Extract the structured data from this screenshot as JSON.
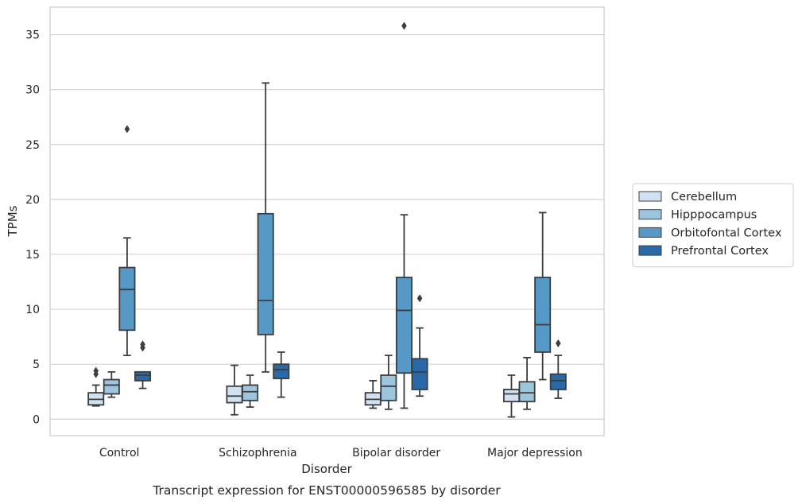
{
  "chart_data": {
    "type": "boxplot",
    "caption": "Transcript expression for ENST00000596585 by disorder",
    "xlabel": "Disorder",
    "ylabel": "TPMs",
    "ylim": [
      -1.5,
      37.5
    ],
    "yticks": [
      0,
      5,
      10,
      15,
      20,
      25,
      30,
      35
    ],
    "grid": "horizontal",
    "legend_position": "right",
    "categories": [
      "Control",
      "Schizophrenia",
      "Bipolar disorder",
      "Major depression"
    ],
    "series": [
      {
        "name": "Cerebellum",
        "color": "#d0e1f1",
        "boxes": [
          {
            "whisker_low": 1.2,
            "q1": 1.3,
            "median": 1.8,
            "q3": 2.4,
            "whisker_high": 3.1,
            "outliers": [
              4.1,
              4.4
            ]
          },
          {
            "whisker_low": 0.4,
            "q1": 1.5,
            "median": 2.1,
            "q3": 3.0,
            "whisker_high": 4.9,
            "outliers": []
          },
          {
            "whisker_low": 1.0,
            "q1": 1.3,
            "median": 1.8,
            "q3": 2.4,
            "whisker_high": 3.5,
            "outliers": []
          },
          {
            "whisker_low": 0.2,
            "q1": 1.6,
            "median": 2.3,
            "q3": 2.7,
            "whisker_high": 4.0,
            "outliers": []
          }
        ]
      },
      {
        "name": "Hipppocampus",
        "color": "#9dc5de",
        "boxes": [
          {
            "whisker_low": 2.0,
            "q1": 2.3,
            "median": 3.1,
            "q3": 3.6,
            "whisker_high": 4.3,
            "outliers": []
          },
          {
            "whisker_low": 1.1,
            "q1": 1.7,
            "median": 2.5,
            "q3": 3.1,
            "whisker_high": 4.0,
            "outliers": []
          },
          {
            "whisker_low": 0.9,
            "q1": 1.7,
            "median": 3.0,
            "q3": 4.0,
            "whisker_high": 5.8,
            "outliers": []
          },
          {
            "whisker_low": 0.9,
            "q1": 1.6,
            "median": 2.4,
            "q3": 3.4,
            "whisker_high": 5.6,
            "outliers": []
          }
        ]
      },
      {
        "name": "Orbitofontal Cortex",
        "color": "#5699c6",
        "boxes": [
          {
            "whisker_low": 5.8,
            "q1": 8.1,
            "median": 11.8,
            "q3": 13.8,
            "whisker_high": 16.5,
            "outliers": [
              26.4
            ]
          },
          {
            "whisker_low": 4.3,
            "q1": 7.7,
            "median": 10.8,
            "q3": 18.7,
            "whisker_high": 30.6,
            "outliers": []
          },
          {
            "whisker_low": 1.0,
            "q1": 4.2,
            "median": 9.9,
            "q3": 12.9,
            "whisker_high": 18.6,
            "outliers": [
              35.8
            ]
          },
          {
            "whisker_low": 3.6,
            "q1": 6.1,
            "median": 8.6,
            "q3": 12.9,
            "whisker_high": 18.8,
            "outliers": []
          }
        ]
      },
      {
        "name": "Prefrontal Cortex",
        "color": "#2a69a8",
        "boxes": [
          {
            "whisker_low": 2.8,
            "q1": 3.5,
            "median": 4.0,
            "q3": 4.3,
            "whisker_high": 4.3,
            "outliers": [
              6.5,
              6.8
            ]
          },
          {
            "whisker_low": 2.0,
            "q1": 3.7,
            "median": 4.5,
            "q3": 5.0,
            "whisker_high": 6.1,
            "outliers": []
          },
          {
            "whisker_low": 2.1,
            "q1": 2.7,
            "median": 4.3,
            "q3": 5.5,
            "whisker_high": 8.3,
            "outliers": [
              11.0
            ]
          },
          {
            "whisker_low": 1.9,
            "q1": 2.7,
            "median": 3.5,
            "q3": 4.1,
            "whisker_high": 5.8,
            "outliers": [
              6.9
            ]
          }
        ]
      }
    ]
  }
}
